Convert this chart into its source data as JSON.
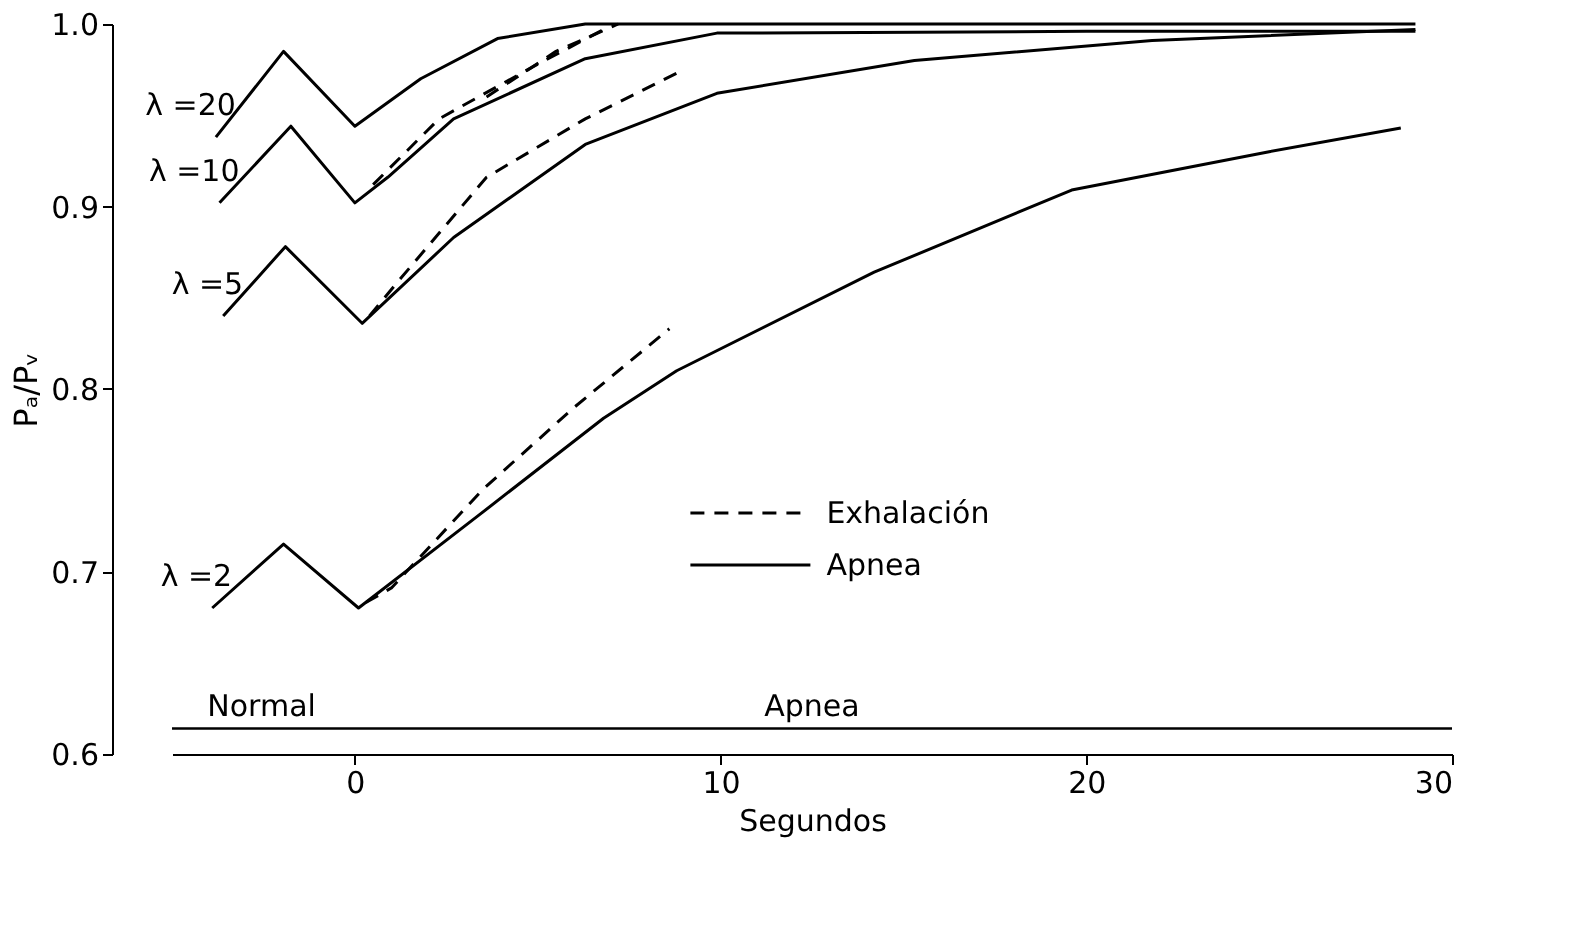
{
  "chart_data": {
    "type": "line",
    "xlabel": "Segundos",
    "ylabel": "Pₐ/Pᵥ",
    "xlim": [
      -5,
      30
    ],
    "ylim": [
      0.6,
      1.0
    ],
    "xticks": [
      0,
      10,
      20,
      30
    ],
    "yticks": [
      0.6,
      0.7,
      0.8,
      0.9,
      {
        "value": 1.0,
        "label": "1.0"
      }
    ],
    "grid": false,
    "legend": "bottom right",
    "marker": "none",
    "series": [
      {
        "name": "Exhalación",
        "color": "#000000",
        "line_style": "dashed",
        "x": [
          3.6,
          5.5,
          7.2
        ],
        "values": [
          0.96,
          0.985,
          1.0
        ]
      },
      {
        "color": "#000000",
        "line_style": "dashed",
        "x": [
          0.5,
          2.3,
          5,
          6.9
        ],
        "values": [
          0.912,
          0.948,
          0.978,
          0.998
        ]
      },
      {
        "color": "#000000",
        "line_style": "dashed",
        "x": [
          0.4,
          1.1,
          3.6,
          6.3,
          8.8
        ],
        "values": [
          0.84,
          0.857,
          0.916,
          0.948,
          0.973
        ]
      },
      {
        "color": "#000000",
        "line_style": "dashed",
        "x": [
          0.3,
          1,
          3.5,
          6,
          8.6
        ],
        "values": [
          0.683,
          0.691,
          0.745,
          0.79,
          0.833
        ]
      },
      {
        "name": "Apnea",
        "color": "#000000",
        "line_style": "solid",
        "x": [
          -3.8,
          -1.95,
          0,
          1.8,
          3.9,
          6.3,
          10,
          20,
          29
        ],
        "values": [
          0.938,
          0.985,
          0.944,
          0.97,
          0.992,
          1.0,
          1.0,
          1.0,
          1.0
        ]
      },
      {
        "color": "#000000",
        "line_style": "solid",
        "x": [
          -3.7,
          -1.75,
          0,
          0.9,
          2.7,
          6.3,
          9.9,
          20,
          29
        ],
        "values": [
          0.902,
          0.944,
          0.902,
          0.916,
          0.948,
          0.981,
          0.995,
          0.996,
          0.996
        ]
      },
      {
        "color": "#000000",
        "line_style": "solid",
        "x": [
          -3.6,
          -1.9,
          0.2,
          2.7,
          6.3,
          9.9,
          15.3,
          21.8,
          29
        ],
        "values": [
          0.84,
          0.878,
          0.836,
          0.883,
          0.934,
          0.962,
          0.98,
          0.991,
          0.997
        ]
      },
      {
        "color": "#000000",
        "line_style": "solid",
        "x": [
          -3.9,
          -1.95,
          0.1,
          3.4,
          6.8,
          8.8,
          14.2,
          19.6,
          25,
          28.6
        ],
        "values": [
          0.68,
          0.715,
          0.68,
          0.731,
          0.784,
          0.81,
          0.864,
          0.909,
          0.93,
          0.943
        ]
      }
    ],
    "ref_lines": [
      {
        "axis": "y",
        "value": 0.614,
        "color": "#000000",
        "line_style": "solid"
      }
    ],
    "annotations": [
      {
        "text": "λ =20",
        "x": -3.8,
        "y": 0.938
      },
      {
        "text": "λ =10",
        "x": -3.7,
        "y": 0.902
      },
      {
        "text": "λ =5",
        "x": -3.6,
        "y": 0.84
      },
      {
        "text": "λ =2",
        "x": -3.9,
        "y": 0.68
      },
      "Normal",
      "Apnea"
    ]
  }
}
